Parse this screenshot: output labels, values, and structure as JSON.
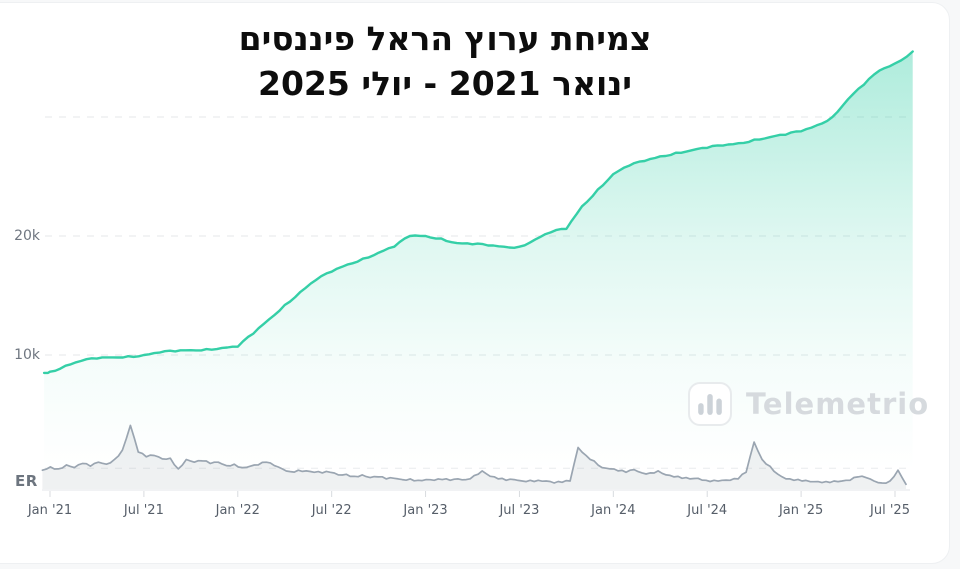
{
  "title": {
    "line1": "צמיחת ערוץ הראל פיננסים",
    "line2": "ינואר 2021 - יולי 2025"
  },
  "watermark": {
    "label": "Telemetrio",
    "icon": "bar-chart-icon"
  },
  "er_axis_label": "ER",
  "colors": {
    "line": "#35cfa7",
    "fill": "#35cfa7",
    "er_line": "#9aa5b1",
    "er_fill_opacity": 0.16,
    "grid": "#e4e7ea",
    "er_grid": "#e8ebee",
    "axis_line": "#e3e6e9",
    "tick": "#d8dbdf",
    "title_text": "#0d0d0d",
    "page_bg": "#f7f8f9",
    "card_bg": "#ffffff",
    "watermark_text": "#d6dade"
  },
  "chart_data": [
    {
      "type": "area",
      "name": "channel-subscribers-growth",
      "title": "צמיחת ערוץ הראל פיננסים ינואר 2021 - יולי 2025",
      "unit": "subscribers (thousands)",
      "x_start": "Jan 2021",
      "x_end": "Jul 2025",
      "x_interval": "monthly",
      "head_point": {
        "t": -0.007,
        "value": 8.5
      },
      "values_monthly": [
        8.6,
        9.1,
        9.5,
        9.7,
        9.8,
        9.9,
        10.0,
        10.2,
        10.3,
        10.4,
        10.5,
        10.6,
        10.7,
        11.8,
        13.0,
        14.2,
        15.3,
        16.3,
        17.0,
        17.6,
        18.1,
        18.6,
        19.1,
        20.0,
        20.0,
        19.8,
        19.4,
        19.3,
        19.2,
        19.1,
        19.1,
        19.7,
        20.3,
        20.6,
        22.5,
        23.9,
        25.2,
        25.9,
        26.3,
        26.7,
        27.0,
        27.2,
        27.4,
        27.6,
        27.8,
        28.1,
        28.3,
        28.5,
        28.8,
        29.3,
        30.0,
        31.5,
        32.7,
        33.9,
        34.5
      ],
      "tail_point": {
        "t": 1.021,
        "value": 35.5
      },
      "ylim": [
        7,
        36.5
      ],
      "yticks": [
        {
          "value": 10,
          "label": "10k"
        },
        {
          "value": 20,
          "label": "20k"
        },
        {
          "value": 30,
          "label": ""
        }
      ],
      "xticks": [
        {
          "month_index": 0,
          "label": "Jan '21"
        },
        {
          "month_index": 6,
          "label": "Jul '21"
        },
        {
          "month_index": 12,
          "label": "Jan '22"
        },
        {
          "month_index": 18,
          "label": "Jul '22"
        },
        {
          "month_index": 24,
          "label": "Jan '23"
        },
        {
          "month_index": 30,
          "label": "Jul '23"
        },
        {
          "month_index": 36,
          "label": "Jan '24"
        },
        {
          "month_index": 42,
          "label": "Jul '24"
        },
        {
          "month_index": 48,
          "label": "Jan '25"
        },
        {
          "month_index": 54,
          "label": "Jul '25"
        }
      ],
      "grid": "dashed horizontal",
      "legend": "none"
    },
    {
      "type": "area",
      "name": "engagement-rate",
      "label": "ER",
      "unit": "relative engagement (no scale shown)",
      "t_start": -0.009,
      "t_end": 1.013,
      "values": [
        28,
        33,
        30,
        36,
        32,
        38,
        34,
        40,
        37,
        44,
        58,
        95,
        55,
        48,
        50,
        45,
        46,
        30,
        44,
        40,
        42,
        38,
        40,
        35,
        37,
        32,
        34,
        36,
        40,
        35,
        30,
        26,
        28,
        27,
        25,
        24,
        25,
        21,
        22,
        19,
        21,
        17,
        18,
        15,
        16,
        14,
        15,
        13,
        14,
        13,
        14,
        13,
        15,
        14,
        20,
        27,
        19,
        15,
        13,
        14,
        12,
        13,
        13,
        12,
        9,
        10,
        12,
        62,
        50,
        42,
        32,
        30,
        27,
        25,
        29,
        24,
        24,
        27,
        21,
        18,
        16,
        15,
        16,
        13,
        13,
        13,
        13,
        15,
        25,
        70,
        44,
        34,
        22,
        15,
        13,
        12,
        11,
        11,
        11,
        12,
        12,
        13,
        18,
        17,
        12,
        9,
        12,
        28,
        7
      ],
      "gridline_value": 31,
      "peaks": [
        {
          "t": 0.091,
          "note": "spike mid-2021"
        },
        {
          "t": 0.625,
          "note": "spike late 2023"
        },
        {
          "t": 0.834,
          "note": "spike late 2024"
        },
        {
          "t": 0.998,
          "note": "small spike Jul 2025"
        }
      ]
    }
  ]
}
